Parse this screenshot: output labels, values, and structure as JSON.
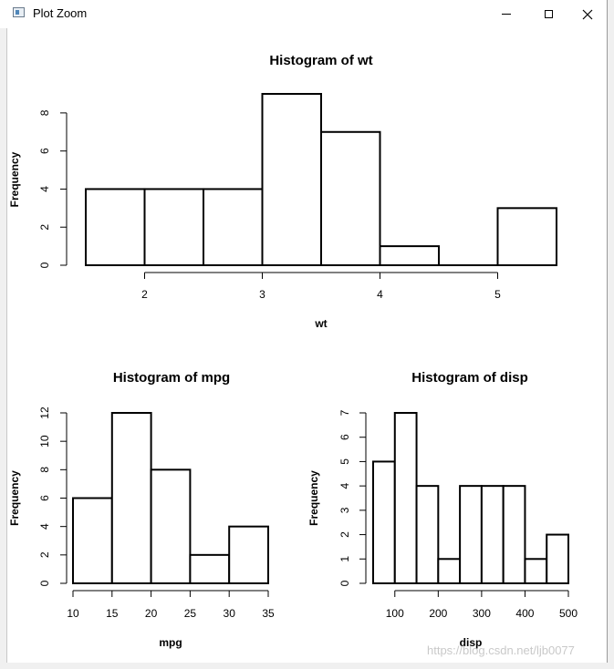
{
  "window": {
    "title": "Plot Zoom",
    "icon": "plot-window-icon",
    "controls": [
      "minimize-icon",
      "maximize-icon",
      "close-icon"
    ]
  },
  "watermark": "https://blog.csdn.net/ljb0077",
  "chart_data": [
    {
      "type": "bar",
      "title": "Histogram of wt",
      "xlabel": "wt",
      "ylabel": "Frequency",
      "bin_edges": [
        1.5,
        2.0,
        2.5,
        3.0,
        3.5,
        4.0,
        4.5,
        5.0,
        5.5
      ],
      "values": [
        4,
        4,
        4,
        9,
        7,
        1,
        0,
        3
      ],
      "xticks": [
        2,
        3,
        4,
        5
      ],
      "yticks": [
        0,
        2,
        4,
        6,
        8
      ],
      "xlim": [
        1.5,
        5.5
      ],
      "ylim": [
        0,
        9
      ]
    },
    {
      "type": "bar",
      "title": "Histogram of mpg",
      "xlabel": "mpg",
      "ylabel": "Frequency",
      "bin_edges": [
        10,
        15,
        20,
        25,
        30,
        35
      ],
      "values": [
        6,
        12,
        8,
        2,
        4
      ],
      "xticks": [
        10,
        15,
        20,
        25,
        30,
        35
      ],
      "yticks": [
        0,
        2,
        4,
        6,
        8,
        10,
        12
      ],
      "xlim": [
        10,
        35
      ],
      "ylim": [
        0,
        12
      ]
    },
    {
      "type": "bar",
      "title": "Histogram of disp",
      "xlabel": "disp",
      "ylabel": "Frequency",
      "bin_edges": [
        50,
        100,
        150,
        200,
        250,
        300,
        350,
        400,
        450,
        500
      ],
      "values": [
        5,
        7,
        4,
        1,
        4,
        4,
        4,
        1,
        2
      ],
      "xticks": [
        100,
        200,
        300,
        400,
        500
      ],
      "yticks": [
        0,
        1,
        2,
        3,
        4,
        5,
        6,
        7
      ],
      "xlim": [
        50,
        500
      ],
      "ylim": [
        0,
        7
      ]
    }
  ]
}
